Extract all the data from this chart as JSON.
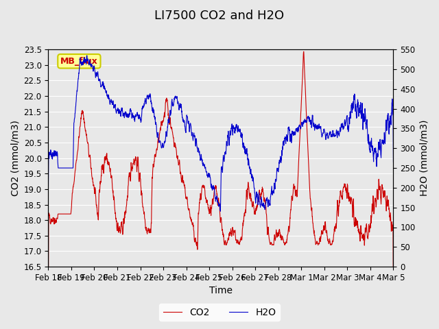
{
  "title": "LI7500 CO2 and H2O",
  "xlabel": "Time",
  "ylabel_left": "CO2 (mmol/m3)",
  "ylabel_right": "H2O (mmol/m3)",
  "co2_ylim": [
    16.5,
    23.5
  ],
  "h2o_ylim": [
    0,
    550
  ],
  "co2_color": "#cc0000",
  "h2o_color": "#0000cc",
  "background_color": "#e8e8e8",
  "annotation_text": "MB_flux",
  "annotation_bg": "#ffff99",
  "annotation_border": "#cccc00",
  "legend_co2": "CO2",
  "legend_h2o": "H2O",
  "xtick_labels": [
    "Feb 18",
    "Feb 19",
    "Feb 20",
    "Feb 21",
    "Feb 22",
    "Feb 23",
    "Feb 24",
    "Feb 25",
    "Feb 26",
    "Feb 27",
    "Feb 28",
    "Mar 1",
    "Mar 2",
    "Mar 3",
    "Mar 4",
    "Mar 5"
  ],
  "co2_yticks": [
    16.5,
    17.0,
    17.5,
    18.0,
    18.5,
    19.0,
    19.5,
    20.0,
    20.5,
    21.0,
    21.5,
    22.0,
    22.5,
    23.0,
    23.5
  ],
  "h2o_yticks": [
    0,
    50,
    100,
    150,
    200,
    250,
    300,
    350,
    400,
    450,
    500,
    550
  ],
  "title_fontsize": 13,
  "axis_label_fontsize": 10,
  "tick_fontsize": 8.5,
  "n_days": 15
}
